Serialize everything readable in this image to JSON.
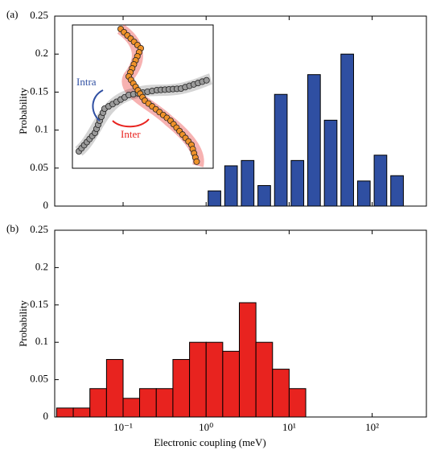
{
  "chart_data": [
    {
      "type": "histogram",
      "label": "(a)",
      "ylabel": "Probability",
      "log_x": true,
      "color": "#2f4fa2",
      "bins": [
        1,
        1.585,
        2.512,
        3.981,
        6.31,
        10,
        15.85,
        25.12,
        39.81,
        63.1,
        100,
        158.5,
        251.2
      ],
      "values": [
        0.02,
        0.053,
        0.06,
        0.027,
        0.147,
        0.06,
        0.173,
        0.113,
        0.2,
        0.033,
        0.067,
        0.04
      ],
      "xlim": [
        0.015,
        450
      ],
      "ylim": [
        0,
        0.25
      ],
      "xticks": [
        {
          "value": 0.1,
          "label": ""
        },
        {
          "value": 1,
          "label": ""
        },
        {
          "value": 10,
          "label": ""
        },
        {
          "value": 100,
          "label": ""
        }
      ],
      "yticks": [
        0,
        0.05,
        0.1,
        0.15,
        0.2,
        0.25
      ],
      "annotations": [
        "Intra",
        "Inter"
      ]
    },
    {
      "type": "histogram",
      "label": "(b)",
      "ylabel": "Probability",
      "xlabel": "Electronic coupling (meV)",
      "log_x": true,
      "color": "#e8231f",
      "bins": [
        0.0158,
        0.0251,
        0.0398,
        0.0631,
        0.1,
        0.158,
        0.251,
        0.398,
        0.631,
        1,
        1.585,
        2.512,
        3.981,
        6.31,
        10,
        15.85
      ],
      "values": [
        0.012,
        0.012,
        0.038,
        0.077,
        0.025,
        0.038,
        0.038,
        0.077,
        0.1,
        0.1,
        0.088,
        0.153,
        0.1,
        0.064,
        0.038
      ],
      "xlim": [
        0.015,
        450
      ],
      "ylim": [
        0,
        0.25
      ],
      "xticks": [
        {
          "value": 0.1,
          "label": "10⁻¹"
        },
        {
          "value": 1,
          "label": "10⁰"
        },
        {
          "value": 10,
          "label": "10¹"
        },
        {
          "value": 100,
          "label": "10²"
        }
      ],
      "yticks": [
        0,
        0.05,
        0.1,
        0.15,
        0.2,
        0.25
      ]
    }
  ]
}
